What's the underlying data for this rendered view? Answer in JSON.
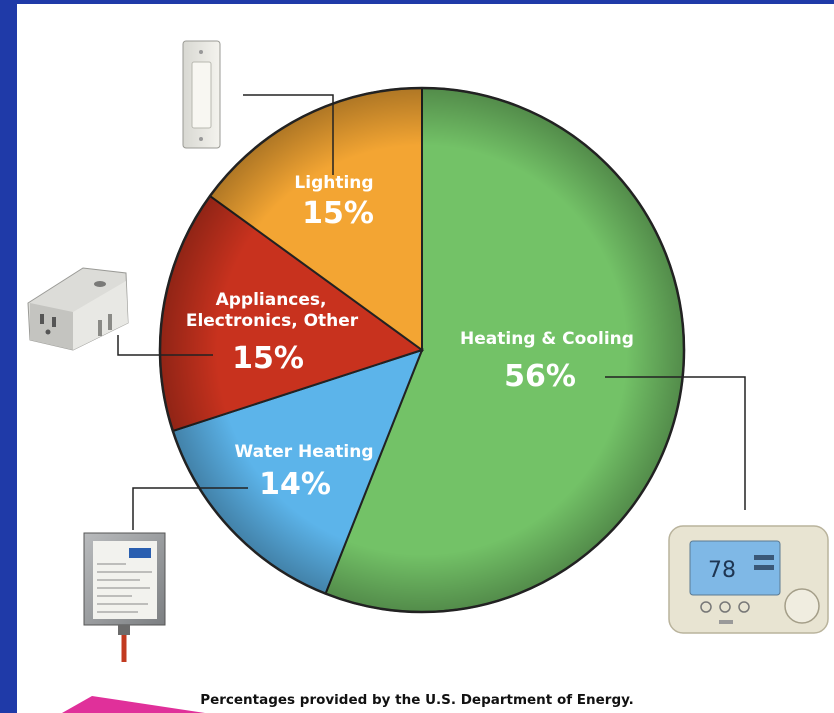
{
  "chart_data": {
    "type": "pie",
    "slices": [
      {
        "label": "Heating & Cooling",
        "value": 56,
        "value_text": "56%",
        "color": "#73c267"
      },
      {
        "label": "Water Heating",
        "value": 14,
        "value_text": "14%",
        "color": "#5cb4ea"
      },
      {
        "label": "Appliances,\nElectronics, Other",
        "value": 15,
        "value_text": "15%",
        "color": "#c8321e"
      },
      {
        "label": "Lighting",
        "value": 15,
        "value_text": "15%",
        "color": "#f3a533"
      }
    ],
    "start_angle_deg": 0,
    "direction": "clockwise"
  },
  "footnote": "Percentages provided by the U.S. Department of Energy.",
  "icons": [
    "light-switch-icon",
    "smart-plug-icon",
    "water-heater-timer-icon",
    "thermostat-icon"
  ],
  "thermostat_display": "78",
  "colors": {
    "background": "#1f3aa8",
    "accent_bar": "#e0309a"
  }
}
